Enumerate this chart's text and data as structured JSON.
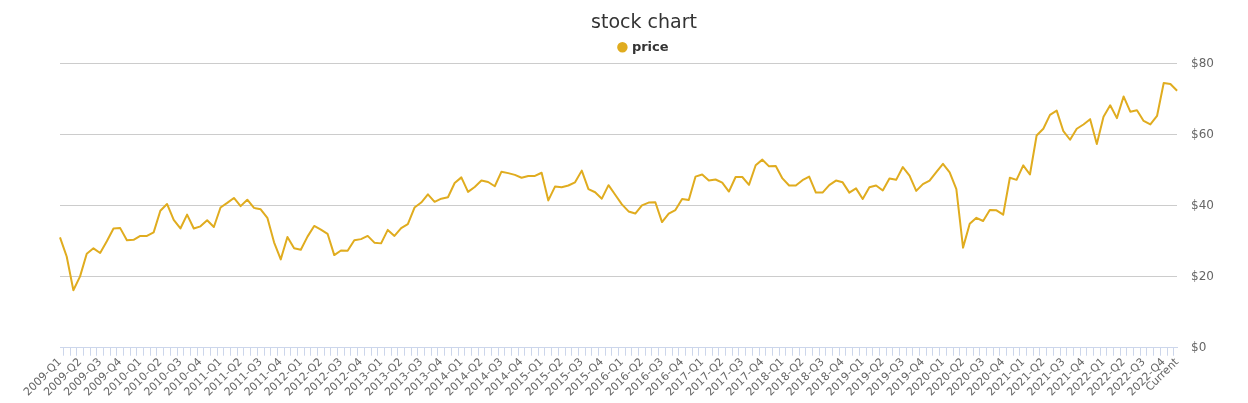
{
  "chart_data": {
    "type": "line",
    "title": "stock chart",
    "categories": [
      "2009-Q1",
      null,
      null,
      "2009-Q2",
      null,
      null,
      "2009-Q3",
      null,
      null,
      "2009-Q4",
      null,
      null,
      "2010-Q1",
      null,
      null,
      "2010-Q2",
      null,
      null,
      "2010-Q3",
      null,
      null,
      "2010-Q4",
      null,
      null,
      "2011-Q1",
      null,
      null,
      "2011-Q2",
      null,
      null,
      "2011-Q3",
      null,
      null,
      "2011-Q4",
      null,
      null,
      "2012-Q1",
      null,
      null,
      "2012-Q2",
      null,
      null,
      "2012-Q3",
      null,
      null,
      "2012-Q4",
      null,
      null,
      "2013-Q1",
      null,
      null,
      "2013-Q2",
      null,
      null,
      "2013-Q3",
      null,
      null,
      "2013-Q4",
      null,
      null,
      "2014-Q1",
      null,
      null,
      "2014-Q2",
      null,
      null,
      "2014-Q3",
      null,
      null,
      "2014-Q4",
      null,
      null,
      "2015-Q1",
      null,
      null,
      "2015-Q2",
      null,
      null,
      "2015-Q3",
      null,
      null,
      "2015-Q4",
      null,
      null,
      "2016-Q1",
      null,
      null,
      "2016-Q2",
      null,
      null,
      "2016-Q3",
      null,
      null,
      "2016-Q4",
      null,
      null,
      "2017-Q1",
      null,
      null,
      "2017-Q2",
      null,
      null,
      "2017-Q3",
      null,
      null,
      "2017-Q4",
      null,
      null,
      "2018-Q1",
      null,
      null,
      "2018-Q2",
      null,
      null,
      "2018-Q3",
      null,
      null,
      "2018-Q4",
      null,
      null,
      "2019-Q1",
      null,
      null,
      "2019-Q2",
      null,
      null,
      "2019-Q3",
      null,
      null,
      "2019-Q4",
      null,
      null,
      "2020-Q1",
      null,
      null,
      "2020-Q2",
      null,
      null,
      "2020-Q3",
      null,
      null,
      "2020-Q4",
      null,
      null,
      "2021-Q1",
      null,
      null,
      "2021-Q2",
      null,
      null,
      "2021-Q3",
      null,
      null,
      "2021-Q4",
      null,
      null,
      "2022-Q1",
      null,
      null,
      "2022-Q2",
      null,
      null,
      "2022-Q3",
      null,
      null,
      "2022-Q4",
      null,
      "Current"
    ],
    "series": [
      {
        "name": "price",
        "color": "#e0ac1f",
        "values": [
          31.1,
          25.7,
          16.2,
          20.1,
          26.5,
          28.0,
          26.7,
          30.0,
          33.6,
          33.7,
          30.3,
          30.4,
          31.5,
          31.5,
          32.5,
          38.6,
          40.5,
          36.0,
          33.6,
          37.5,
          33.6,
          34.2,
          35.9,
          34.0,
          39.5,
          40.8,
          42.2,
          39.9,
          41.7,
          39.4,
          39.0,
          36.6,
          29.7,
          24.9,
          31.2,
          28.0,
          27.6,
          31.3,
          34.3,
          33.3,
          32.1,
          26.1,
          27.4,
          27.3,
          30.3,
          30.6,
          31.5,
          29.6,
          29.4,
          33.2,
          31.5,
          33.7,
          34.8,
          39.5,
          40.9,
          43.2,
          41.1,
          42.0,
          42.4,
          46.4,
          48.0,
          43.9,
          45.3,
          47.1,
          46.7,
          45.5,
          49.6,
          49.2,
          48.7,
          47.9,
          48.4,
          48.4,
          49.3,
          41.5,
          45.4,
          45.2,
          45.7,
          46.6,
          49.9,
          44.7,
          43.8,
          42.0,
          45.8,
          43.1,
          40.4,
          38.4,
          37.8,
          40.1,
          40.9,
          41.0,
          35.4,
          37.8,
          38.8,
          41.9,
          41.6,
          48.2,
          48.8,
          47.1,
          47.4,
          46.5,
          44.0,
          48.1,
          48.1,
          45.9,
          51.4,
          53.0,
          51.1,
          51.2,
          47.7,
          45.7,
          45.7,
          47.2,
          48.2,
          43.7,
          43.7,
          45.8,
          47.1,
          46.6,
          43.7,
          44.9,
          41.9,
          45.2,
          45.7,
          44.3,
          47.7,
          47.3,
          50.9,
          48.5,
          44.2,
          46.1,
          47.1,
          49.5,
          51.8,
          49.4,
          44.7,
          28.2,
          34.9,
          36.6,
          35.7,
          38.8,
          38.7,
          37.5,
          47.9,
          47.3,
          51.4,
          48.8,
          59.8,
          61.7,
          65.6,
          66.8,
          61.0,
          58.6,
          61.7,
          62.9,
          64.4,
          57.4,
          65.1,
          68.3,
          64.7,
          70.8,
          66.5,
          66.9,
          63.9,
          62.9,
          65.3,
          74.6,
          74.3,
          72.4
        ]
      }
    ],
    "ylim": [
      0,
      80
    ],
    "yticks": [
      {
        "value": 0,
        "label": "$0"
      },
      {
        "value": 20,
        "label": "$20"
      },
      {
        "value": 40,
        "label": "$40"
      },
      {
        "value": 60,
        "label": "$60"
      },
      {
        "value": 80,
        "label": "$80"
      }
    ],
    "grid": "y",
    "legend": "top",
    "marker": "none",
    "line_style": "solid"
  }
}
